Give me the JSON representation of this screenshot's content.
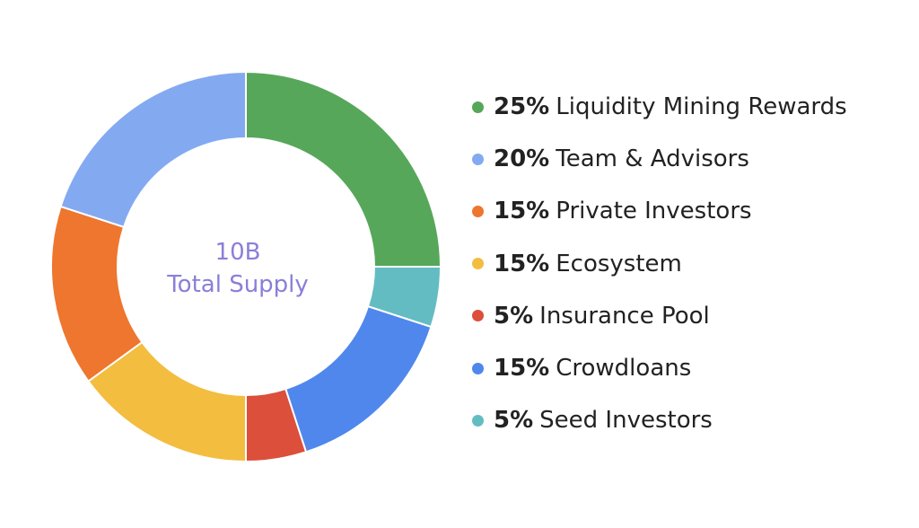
{
  "chart_data": {
    "type": "pie",
    "center_label": {
      "line1": "10B",
      "line2": "Total Supply",
      "color": "#8a7fd8"
    },
    "legend_position": "right",
    "slices": [
      {
        "label": "Liquidity Mining Rewards",
        "pct_label": "25%",
        "value": 25,
        "color": "#57a75a"
      },
      {
        "label": "Seed Investors",
        "pct_label": "5%",
        "value": 5,
        "color": "#64bcc3"
      },
      {
        "label": "Crowdloans",
        "pct_label": "15%",
        "value": 15,
        "color": "#4f87ec"
      },
      {
        "label": "Insurance Pool",
        "pct_label": "5%",
        "value": 5,
        "color": "#db4f3b"
      },
      {
        "label": "Ecosystem",
        "pct_label": "15%",
        "value": 15,
        "color": "#f3bd40"
      },
      {
        "label": "Private Investors",
        "pct_label": "15%",
        "value": 15,
        "color": "#ee762e"
      },
      {
        "label": "Team & Advisors",
        "pct_label": "20%",
        "value": 20,
        "color": "#83aaf1"
      }
    ],
    "legend": [
      {
        "pct": "25%",
        "label": "Liquidity Mining Rewards",
        "color": "#57a75a"
      },
      {
        "pct": "20%",
        "label": "Team & Advisors",
        "color": "#83aaf1"
      },
      {
        "pct": "15%",
        "label": "Private Investors",
        "color": "#ee762e"
      },
      {
        "pct": "15%",
        "label": "Ecosystem",
        "color": "#f3bd40"
      },
      {
        "pct": "5%",
        "label": "Insurance Pool",
        "color": "#db4f3b"
      },
      {
        "pct": "15%",
        "label": "Crowdloans",
        "color": "#4f87ec"
      },
      {
        "pct": "5%",
        "label": "Seed Investors",
        "color": "#64bcc3"
      }
    ]
  }
}
